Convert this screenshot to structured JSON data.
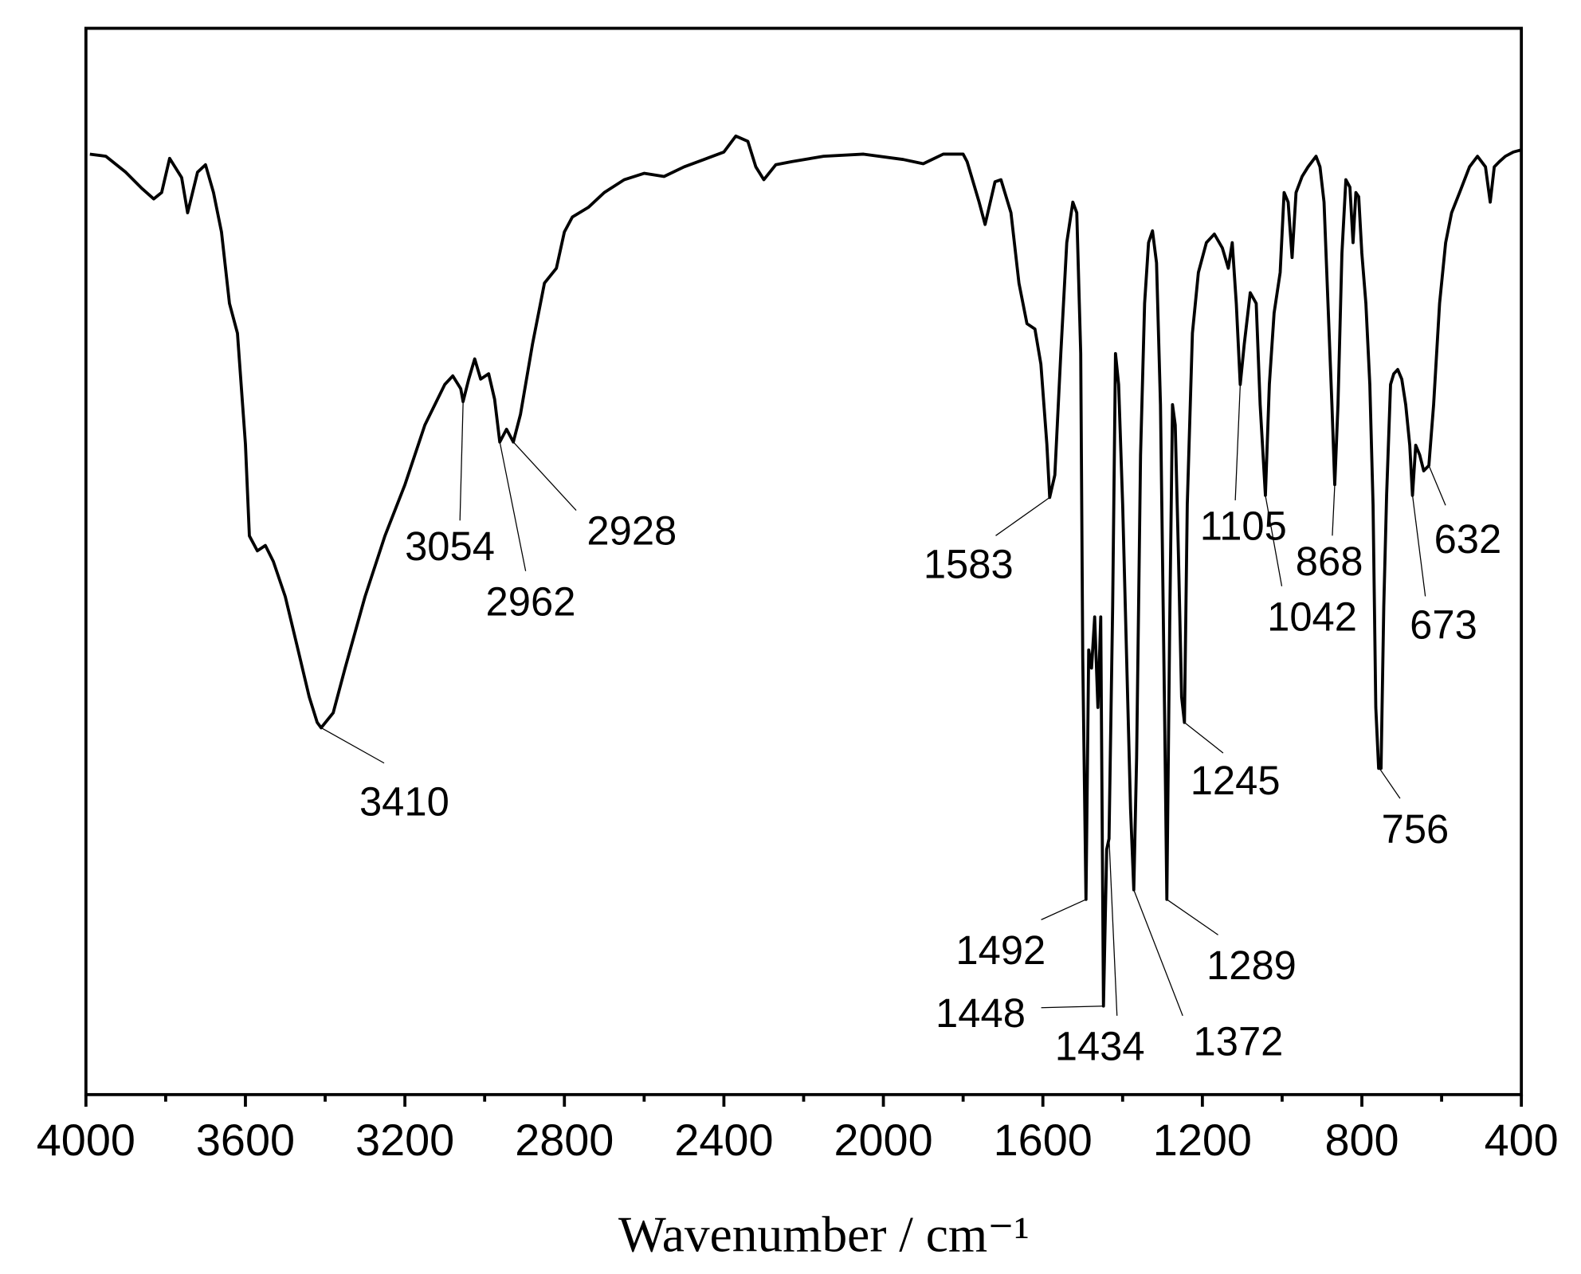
{
  "chart_data": {
    "type": "line",
    "xlabel": "Wavenumber / cm⁻¹",
    "xlim": [
      4000,
      400
    ],
    "ylim": [
      0,
      100
    ],
    "xticks": [
      4000,
      3600,
      3200,
      2800,
      2400,
      2000,
      1600,
      1200,
      800,
      400
    ],
    "xminorticks": [
      3800,
      3400,
      3000,
      2600,
      2200,
      1800,
      1400,
      1000,
      600
    ],
    "series": [
      {
        "color": "#000000",
        "x": [
          3990,
          3950,
          3900,
          3860,
          3830,
          3810,
          3790,
          3760,
          3745,
          3720,
          3700,
          3680,
          3660,
          3640,
          3620,
          3600,
          3590,
          3570,
          3550,
          3530,
          3500,
          3470,
          3440,
          3420,
          3410,
          3380,
          3350,
          3300,
          3250,
          3200,
          3150,
          3100,
          3080,
          3060,
          3054,
          3040,
          3025,
          3010,
          2990,
          2975,
          2962,
          2945,
          2928,
          2910,
          2880,
          2850,
          2820,
          2800,
          2780,
          2740,
          2700,
          2650,
          2600,
          2550,
          2500,
          2450,
          2400,
          2370,
          2340,
          2320,
          2300,
          2270,
          2230,
          2150,
          2050,
          1950,
          1900,
          1850,
          1800,
          1790,
          1760,
          1745,
          1720,
          1705,
          1680,
          1660,
          1640,
          1620,
          1605,
          1590,
          1583,
          1570,
          1555,
          1540,
          1525,
          1515,
          1505,
          1500,
          1492,
          1485,
          1478,
          1470,
          1462,
          1455,
          1448,
          1440,
          1434,
          1425,
          1418,
          1410,
          1400,
          1390,
          1380,
          1372,
          1365,
          1355,
          1345,
          1335,
          1325,
          1315,
          1305,
          1295,
          1289,
          1282,
          1275,
          1268,
          1260,
          1252,
          1245,
          1238,
          1225,
          1210,
          1190,
          1170,
          1150,
          1135,
          1125,
          1115,
          1105,
          1095,
          1080,
          1065,
          1055,
          1042,
          1032,
          1020,
          1005,
          995,
          985,
          975,
          965,
          950,
          935,
          915,
          905,
          895,
          885,
          875,
          868,
          860,
          850,
          840,
          830,
          822,
          815,
          808,
          800,
          790,
          780,
          772,
          765,
          758,
          752,
          745,
          738,
          728,
          720,
          710,
          700,
          690,
          680,
          673,
          665,
          655,
          645,
          632,
          620,
          605,
          590,
          575,
          555,
          530,
          510,
          490,
          478,
          468,
          455,
          440,
          420,
          400
        ],
        "values": [
          88.2,
          88,
          86.5,
          85,
          84,
          84.6,
          87.8,
          86,
          82.7,
          86.5,
          87.2,
          84.6,
          80.9,
          74.2,
          71.4,
          61,
          52.4,
          51,
          51.5,
          50,
          46.7,
          42,
          37.3,
          34.9,
          34.4,
          35.8,
          40,
          46.7,
          52.4,
          57.2,
          62.8,
          66.6,
          67.4,
          66.2,
          65,
          67.1,
          69,
          67.1,
          67.6,
          65.2,
          61.2,
          62.4,
          61.2,
          63.8,
          70.4,
          76.1,
          77.5,
          80.9,
          82.3,
          83.2,
          84.6,
          85.8,
          86.4,
          86.1,
          87,
          87.7,
          88.4,
          89.9,
          89.4,
          87,
          85.8,
          87.2,
          87.5,
          88,
          88.2,
          87.7,
          87.3,
          88.2,
          88.2,
          87.5,
          83.7,
          81.6,
          85.6,
          85.8,
          82.7,
          76.1,
          72.3,
          71.8,
          68.5,
          61,
          56,
          58.1,
          69.5,
          79.9,
          83.7,
          82.7,
          69.5,
          41,
          18.3,
          41.7,
          40,
          44.8,
          36.3,
          44.8,
          8.3,
          23,
          24,
          45.8,
          69.5,
          66.6,
          55.3,
          41,
          26.8,
          19.2,
          31.6,
          60,
          74.2,
          79.9,
          81,
          78,
          64.7,
          36.3,
          18.3,
          43.9,
          64.7,
          62.8,
          50.5,
          37.3,
          34.9,
          55.3,
          71.4,
          77.1,
          79.9,
          80.7,
          79.4,
          77.5,
          79.9,
          74.2,
          66.6,
          70.4,
          75.2,
          74.2,
          64.7,
          56.2,
          66.6,
          73.3,
          77.1,
          84.6,
          83.7,
          78.5,
          84.6,
          86.1,
          87,
          88,
          87,
          83.7,
          74.2,
          64.7,
          57.2,
          64.7,
          78.9,
          85.8,
          85.1,
          79.9,
          84.6,
          84.2,
          78.9,
          74.2,
          66.6,
          55.3,
          36.3,
          30.6,
          30.6,
          45.8,
          56.2,
          66.6,
          67.6,
          68,
          67.1,
          64.7,
          60.9,
          56.2,
          60.9,
          60,
          58.5,
          59,
          64.7,
          74.2,
          79.9,
          82.7,
          84.6,
          87,
          88,
          87,
          83.7,
          87,
          87.5,
          88,
          88.4,
          88.6
        ]
      }
    ],
    "annotations": [
      {
        "x": 3410,
        "y": 34.4
      },
      {
        "x": 3054,
        "y": 65
      },
      {
        "x": 2962,
        "y": 61.2
      },
      {
        "x": 2928,
        "y": 61.2
      },
      {
        "x": 1583,
        "y": 56
      },
      {
        "x": 1492,
        "y": 18.3
      },
      {
        "x": 1448,
        "y": 8.3
      },
      {
        "x": 1434,
        "y": 24
      },
      {
        "x": 1372,
        "y": 19.2
      },
      {
        "x": 1289,
        "y": 18.3
      },
      {
        "x": 1245,
        "y": 34.9
      },
      {
        "x": 1105,
        "y": 66.6
      },
      {
        "x": 1042,
        "y": 56.2
      },
      {
        "x": 868,
        "y": 57.2
      },
      {
        "x": 756,
        "y": 30.6
      },
      {
        "x": 673,
        "y": 56.2
      },
      {
        "x": 632,
        "y": 59
      }
    ]
  }
}
